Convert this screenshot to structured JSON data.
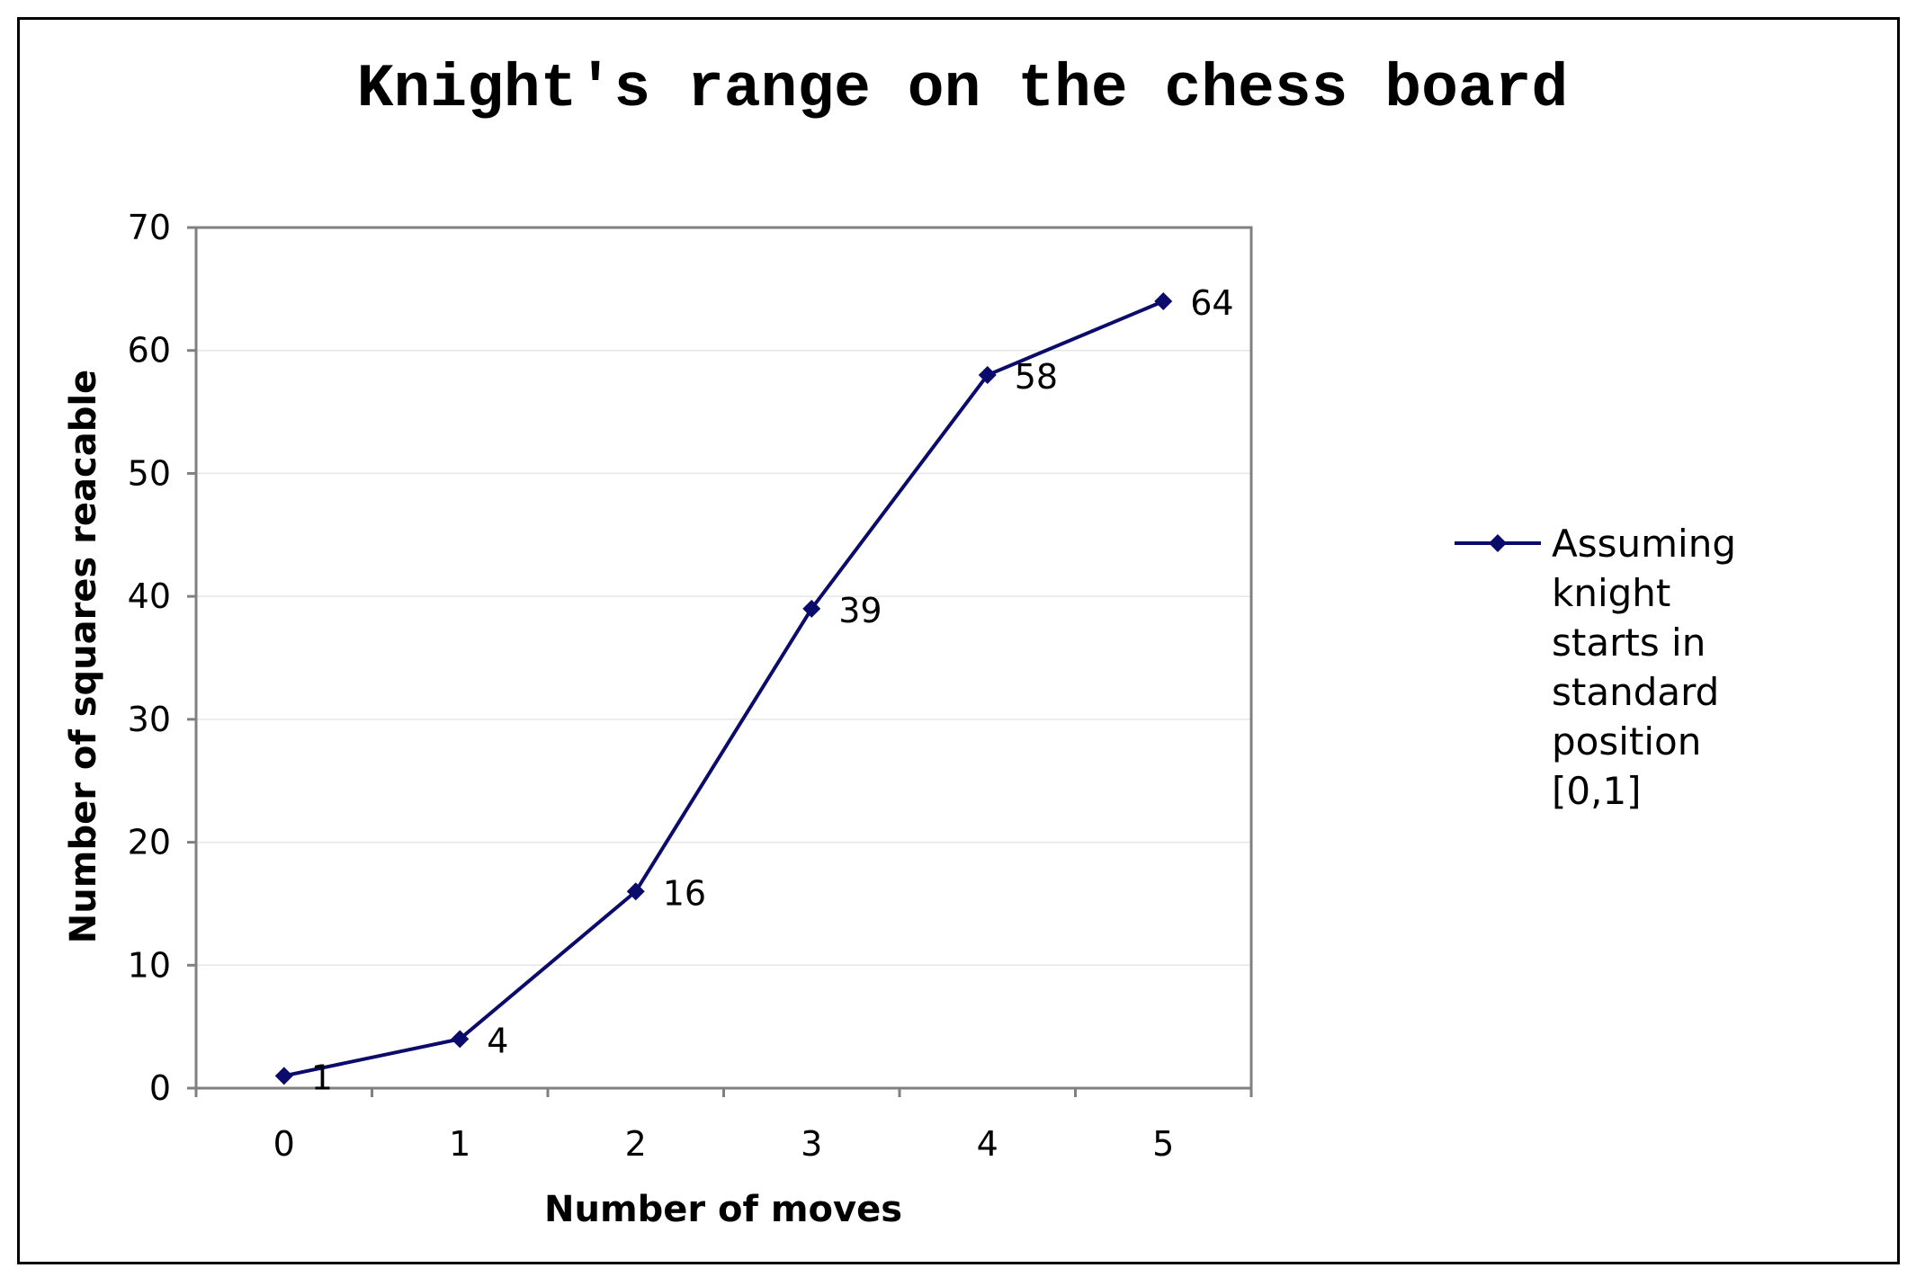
{
  "chart_data": {
    "type": "line",
    "title": "Knight's range on the chess board",
    "xlabel": "Number of moves",
    "ylabel": "Number of squares reacable",
    "categories": [
      "0",
      "1",
      "2",
      "3",
      "4",
      "5"
    ],
    "ylim": [
      0,
      70
    ],
    "yticks": [
      "0",
      "10",
      "20",
      "30",
      "40",
      "50",
      "60",
      "70"
    ],
    "grid": true,
    "legend_position": "right",
    "line_color": "#0b0b6b",
    "series": [
      {
        "name": "Assuming knight starts in standard position [0,1]",
        "legend_lines": [
          "Assuming",
          "knight",
          "starts in",
          "standard",
          "position",
          "[0,1]"
        ],
        "values": [
          1,
          4,
          16,
          39,
          58,
          64
        ],
        "labels": [
          "1",
          "4",
          "16",
          "39",
          "58",
          "64"
        ]
      }
    ]
  }
}
